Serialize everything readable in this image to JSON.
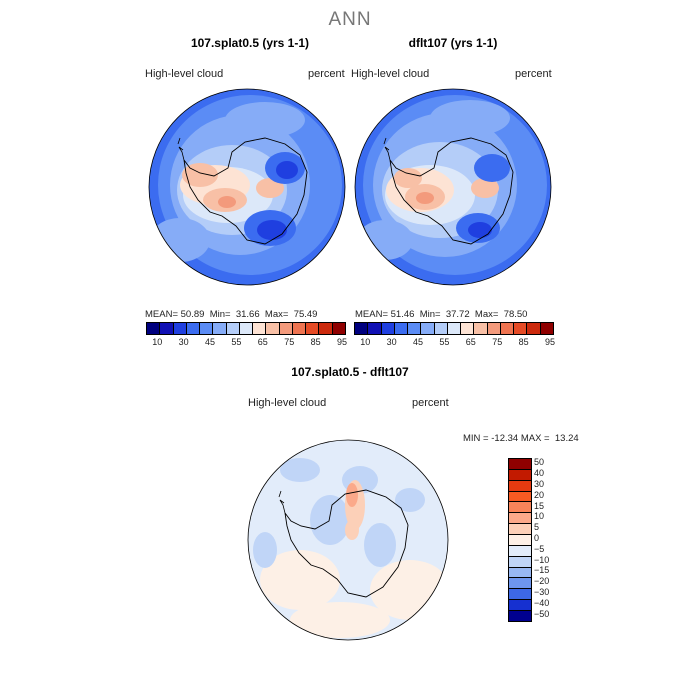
{
  "title": "ANN",
  "panels": [
    {
      "title": "107.splat0.5 (yrs 1-1)",
      "variable": "High-level  cloud",
      "units": "percent",
      "mean_label": "MEAN=",
      "mean": "50.89",
      "min_label": "Min=",
      "min": "31.66",
      "max_label": "Max=",
      "max": "75.49"
    },
    {
      "title": "dflt107 (yrs 1-1)",
      "variable": "High-level  cloud",
      "units": "percent",
      "mean_label": "MEAN=",
      "mean": "51.46",
      "min_label": "Min=",
      "min": "37.72",
      "max_label": "Max=",
      "max": "78.50"
    }
  ],
  "colorbar": {
    "ticks": [
      "10",
      "30",
      "45",
      "55",
      "65",
      "75",
      "85",
      "95"
    ],
    "colors": [
      "#00007f",
      "#1010b4",
      "#1f3fe0",
      "#3b6cf0",
      "#5b8cf5",
      "#86acf7",
      "#b4cdf8",
      "#dce8f9",
      "#fde3d4",
      "#f8c0a6",
      "#f39a7c",
      "#ef7451",
      "#e64b26",
      "#cc2a0d",
      "#8f0000"
    ]
  },
  "diff": {
    "title": "107.splat0.5 - dflt107",
    "variable": "High-level  cloud",
    "units": "percent",
    "min_label": "MIN =",
    "min": "-12.34",
    "max_label": "MAX =",
    "max": "13.24",
    "legend_labels": [
      "50",
      "40",
      "30",
      "20",
      "15",
      "10",
      "5",
      "0",
      "−5",
      "−10",
      "−15",
      "−20",
      "−30",
      "−40",
      "−50"
    ],
    "legend_colors": [
      "#8f0000",
      "#c21a00",
      "#e63a10",
      "#f75a22",
      "#f98459",
      "#fba98a",
      "#fcd0b8",
      "#fdf0e6",
      "#e2ecfa",
      "#c0d5f7",
      "#98b8f3",
      "#6e96ee",
      "#3d68e6",
      "#1630d0",
      "#00008f"
    ]
  }
}
